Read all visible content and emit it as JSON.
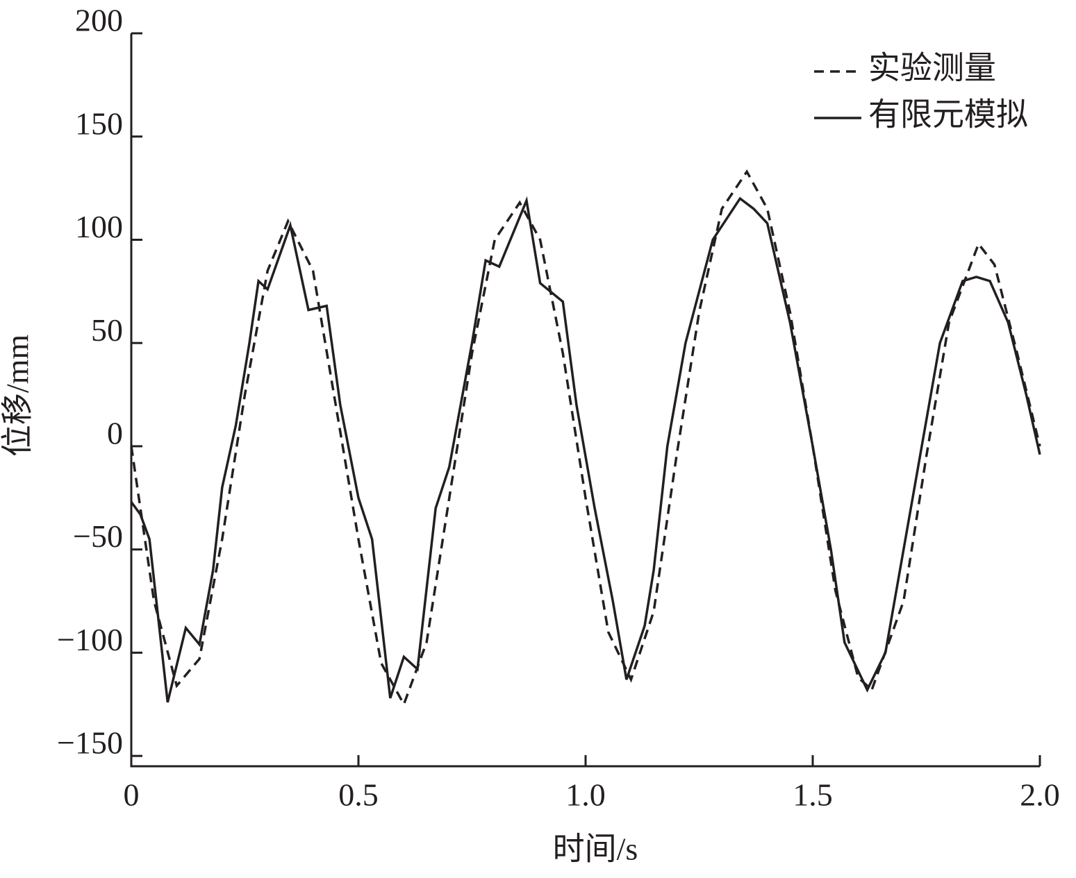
{
  "chart_data": {
    "type": "line",
    "x_label": "时间/s",
    "y_label": "位移/mm",
    "xlim": [
      0,
      2.0
    ],
    "ylim": [
      -155,
      200
    ],
    "xticks": [
      0,
      0.5,
      {
        "value": 1.0,
        "label": "1.0"
      },
      1.5,
      {
        "value": 2.0,
        "label": "2.0"
      }
    ],
    "yticks": [
      {
        "value": -150,
        "label": "−150"
      },
      {
        "value": -100,
        "label": "−100"
      },
      {
        "value": -50,
        "label": "−50"
      },
      0,
      50,
      100,
      150,
      200
    ],
    "legend": "top-right",
    "series": [
      {
        "name": "实验测量",
        "color": "#231f20",
        "dash": true,
        "x": [
          0,
          0.05,
          0.1,
          0.15,
          0.2,
          0.25,
          0.3,
          0.345,
          0.4,
          0.45,
          0.5,
          0.55,
          0.6,
          0.65,
          0.7,
          0.75,
          0.8,
          0.855,
          0.9,
          0.95,
          1.0,
          1.05,
          1.1,
          1.15,
          1.2,
          1.25,
          1.3,
          1.355,
          1.4,
          1.45,
          1.5,
          1.55,
          1.6,
          1.63,
          1.7,
          1.75,
          1.8,
          1.865,
          1.9,
          1.95,
          2.0
        ],
        "values": [
          0,
          -75,
          -116,
          -103,
          -45,
          25,
          85,
          109,
          85,
          20,
          -45,
          -105,
          -125,
          -95,
          -25,
          45,
          100,
          118,
          100,
          45,
          -25,
          -90,
          -113,
          -80,
          -5,
          65,
          115,
          133,
          115,
          65,
          0,
          -70,
          -112,
          -118,
          -75,
          -5,
          60,
          98,
          88,
          45,
          0
        ]
      },
      {
        "name": "有限元模拟",
        "color": "#231f20",
        "dash": false,
        "x": [
          0,
          0.02,
          0.04,
          0.08,
          0.12,
          0.15,
          0.18,
          0.2,
          0.23,
          0.26,
          0.28,
          0.3,
          0.35,
          0.39,
          0.43,
          0.46,
          0.5,
          0.53,
          0.57,
          0.6,
          0.63,
          0.67,
          0.7,
          0.75,
          0.78,
          0.81,
          0.87,
          0.9,
          0.95,
          0.98,
          1.02,
          1.06,
          1.09,
          1.13,
          1.15,
          1.18,
          1.22,
          1.28,
          1.34,
          1.37,
          1.4,
          1.45,
          1.5,
          1.54,
          1.57,
          1.62,
          1.66,
          1.7,
          1.74,
          1.78,
          1.83,
          1.86,
          1.89,
          1.93,
          1.97,
          2.0
        ],
        "values": [
          -27,
          -33,
          -45,
          -124,
          -88,
          -96,
          -60,
          -20,
          10,
          50,
          80,
          76,
          107,
          66,
          68,
          20,
          -25,
          -45,
          -122,
          -102,
          -108,
          -30,
          -10,
          50,
          90,
          87,
          119,
          79,
          70,
          20,
          -30,
          -75,
          -113,
          -87,
          -60,
          0,
          50,
          100,
          120,
          115,
          108,
          60,
          0,
          -50,
          -95,
          -118,
          -100,
          -50,
          0,
          50,
          80,
          82,
          80,
          60,
          25,
          -4
        ]
      }
    ]
  }
}
